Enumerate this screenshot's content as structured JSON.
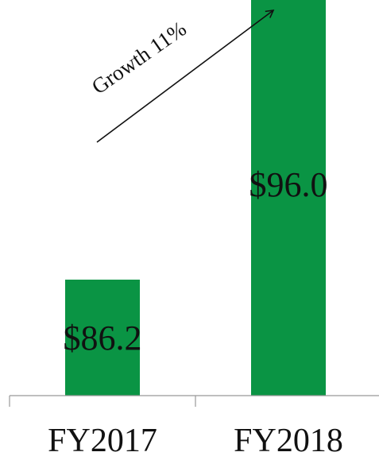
{
  "chart_data": {
    "type": "bar",
    "categories": [
      "FY2017",
      "FY2018"
    ],
    "values": [
      86.2,
      96.0
    ],
    "data_labels": [
      "$86.2",
      "$96.0"
    ],
    "title": "",
    "xlabel": "",
    "ylabel": "",
    "grid": false,
    "legend": "none",
    "bar_color": "#0a9444",
    "annotation": {
      "text": "Growth 11%",
      "arrow": "up-right"
    }
  }
}
